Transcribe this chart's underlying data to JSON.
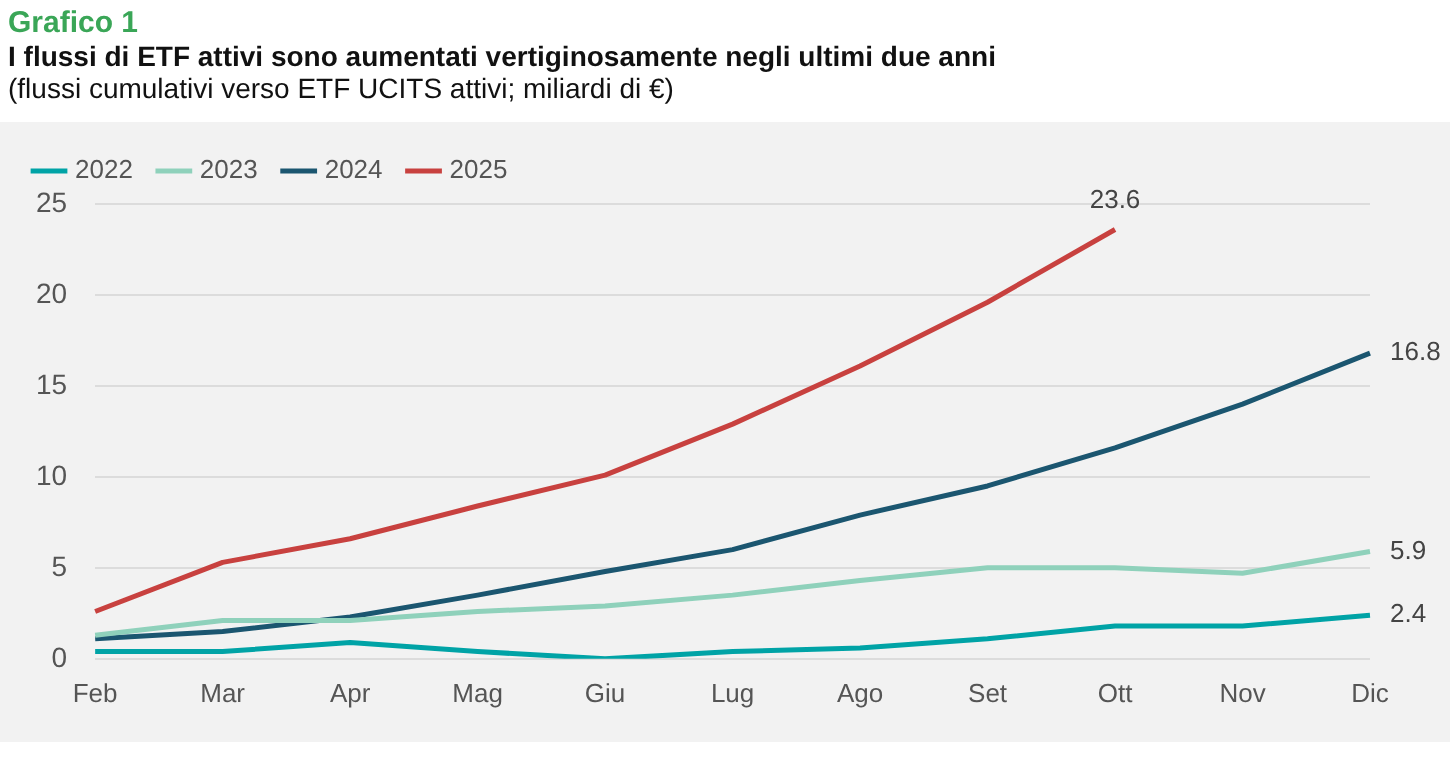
{
  "chart_data": {
    "type": "line",
    "title": "Grafico 1",
    "subtitle": "I flussi di ETF attivi sono aumentati vertiginosamente negli ultimi due anni",
    "annotations": [
      "(flussi cumulativi verso ETF UCITS attivi; miliardi di €)"
    ],
    "categories": [
      "Feb",
      "Mar",
      "Apr",
      "Mag",
      "Giu",
      "Lug",
      "Ago",
      "Set",
      "Ott",
      "Nov",
      "Dic"
    ],
    "series": [
      {
        "name": "2022",
        "color": "#00a3a6",
        "values": [
          0.4,
          0.4,
          0.9,
          0.4,
          0,
          0.4,
          0.6,
          1.1,
          1.8,
          1.8,
          2.4
        ],
        "value_labels": [
          null,
          null,
          null,
          null,
          null,
          null,
          null,
          null,
          null,
          null,
          "2.4"
        ]
      },
      {
        "name": "2023",
        "color": "#8fd1bb",
        "values": [
          1.3,
          2.1,
          2.1,
          2.6,
          2.9,
          3.5,
          4.3,
          5.0,
          5.0,
          4.7,
          5.9
        ],
        "value_labels": [
          null,
          null,
          null,
          null,
          null,
          null,
          null,
          null,
          null,
          null,
          "5.9"
        ]
      },
      {
        "name": "2024",
        "color": "#1b5670",
        "values": [
          1.1,
          1.5,
          2.3,
          3.5,
          4.8,
          6.0,
          7.9,
          9.5,
          11.6,
          14.0,
          16.8
        ],
        "value_labels": [
          null,
          null,
          null,
          null,
          null,
          null,
          null,
          null,
          null,
          null,
          "16.8"
        ]
      },
      {
        "name": "2025",
        "color": "#c8413f",
        "values": [
          2.6,
          5.3,
          6.6,
          8.4,
          10.1,
          12.9,
          16.1,
          19.6,
          23.6,
          null,
          null
        ],
        "value_labels": [
          null,
          null,
          null,
          null,
          null,
          null,
          null,
          null,
          "23.6",
          null,
          null
        ]
      }
    ],
    "ylim": [
      0,
      25
    ],
    "yticks": [
      0,
      5,
      10,
      15,
      20,
      25
    ],
    "grid": "y",
    "legend": "top left",
    "marker": "none",
    "line_style": "solid"
  }
}
